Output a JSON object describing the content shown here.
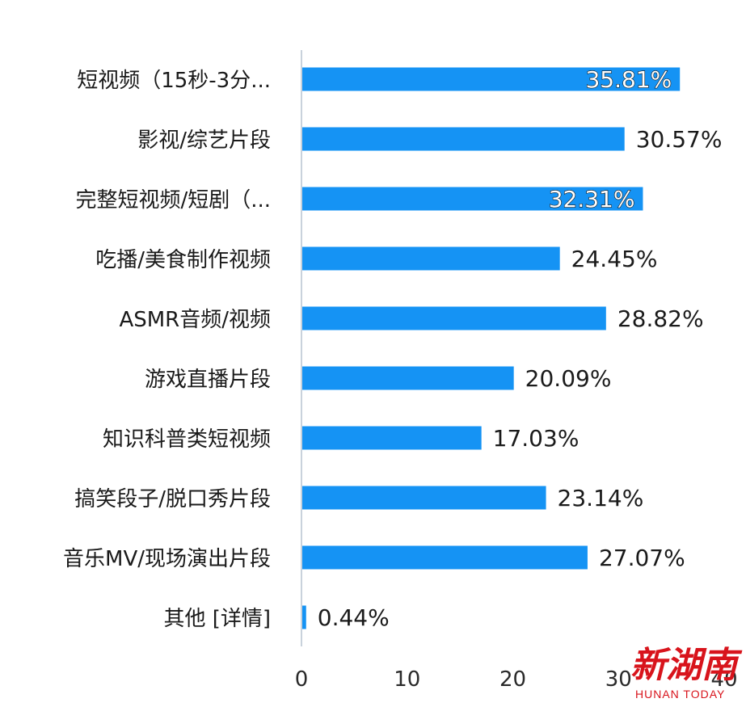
{
  "chart_data": {
    "type": "bar",
    "orientation": "horizontal",
    "categories": [
      "短视频（15秒-3分...",
      "影视/综艺片段",
      "完整短视频/短剧（...",
      "吃播/美食制作视频",
      "ASMR音频/视频",
      "游戏直播片段",
      "知识科普类短视频",
      "搞笑段子/脱口秀片段",
      "音乐MV/现场演出片段",
      "其他 [详情]"
    ],
    "values": [
      35.81,
      30.57,
      32.31,
      24.45,
      28.82,
      20.09,
      17.03,
      23.14,
      27.07,
      0.44
    ],
    "value_labels": [
      "35.81%",
      "30.57%",
      "32.31%",
      "24.45%",
      "28.82%",
      "20.09%",
      "17.03%",
      "23.14%",
      "27.07%",
      "0.44%"
    ],
    "x_ticks": [
      "0",
      "10",
      "20",
      "30",
      "40"
    ],
    "xlim": [
      0,
      40
    ],
    "grid": false,
    "bar_color": "#1593f4"
  },
  "watermark": {
    "text": "新湖南",
    "subtext": "HUNAN TODAY",
    "color": "#d8141c"
  }
}
